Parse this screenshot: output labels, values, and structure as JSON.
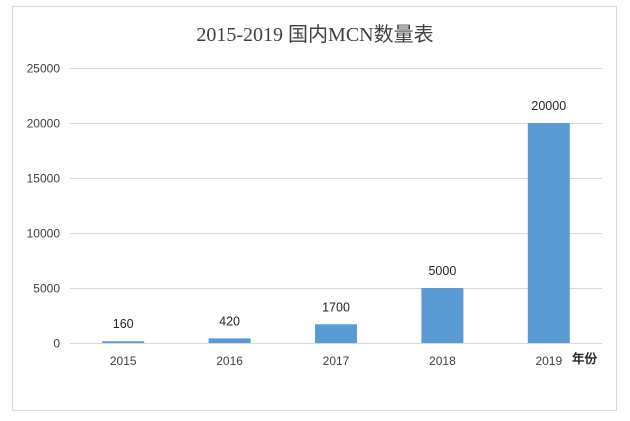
{
  "chart_data": {
    "type": "bar",
    "title": "2015-2019 国内MCN数量表",
    "xlabel": "年份",
    "ylabel": "",
    "categories": [
      "2015",
      "2016",
      "2017",
      "2018",
      "2019"
    ],
    "values": [
      160,
      420,
      1700,
      5000,
      20000
    ],
    "data_labels": [
      "160",
      "420",
      "1700",
      "5000",
      "20000"
    ],
    "ylim": [
      0,
      25000
    ],
    "yticks": [
      0,
      5000,
      10000,
      15000,
      20000,
      25000
    ],
    "ytick_labels": [
      "0",
      "5000",
      "10000",
      "15000",
      "20000",
      "25000"
    ],
    "grid": true,
    "legend": "none",
    "bar_color": "#5b9bd5",
    "grid_color": "#d9d9d9"
  }
}
